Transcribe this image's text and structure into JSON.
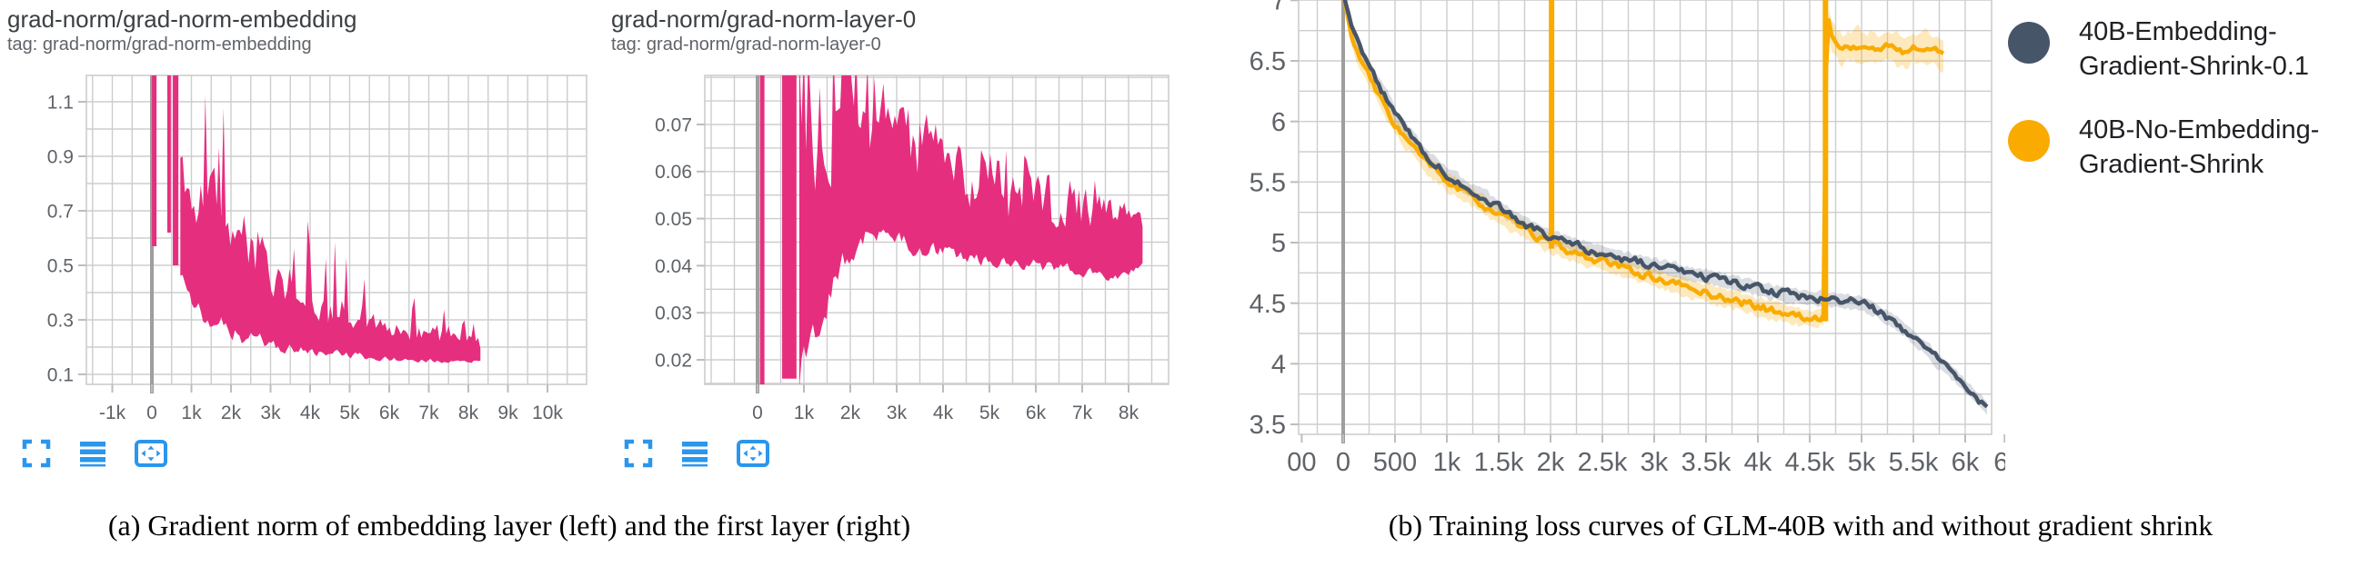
{
  "chart_data": [
    {
      "id": "embedding",
      "type": "area",
      "title": "grad-norm/grad-norm-embedding",
      "tag": "tag: grad-norm/grad-norm-embedding",
      "color": "#e62e7f",
      "xlim": [
        -1900,
        11000
      ],
      "ylim": [
        0.06,
        1.2
      ],
      "grid": true,
      "x_ticks": [
        {
          "v": -1000,
          "l": "-1k"
        },
        {
          "v": 0,
          "l": "0"
        },
        {
          "v": 1000,
          "l": "1k"
        },
        {
          "v": 2000,
          "l": "2k"
        },
        {
          "v": 3000,
          "l": "3k"
        },
        {
          "v": 4000,
          "l": "4k"
        },
        {
          "v": 5000,
          "l": "5k"
        },
        {
          "v": 6000,
          "l": "6k"
        },
        {
          "v": 7000,
          "l": "7k"
        },
        {
          "v": 8000,
          "l": "8k"
        },
        {
          "v": 9000,
          "l": "9k"
        },
        {
          "v": 10000,
          "l": "10k"
        }
      ],
      "y_ticks": [
        {
          "v": 0.1,
          "l": "0.1"
        },
        {
          "v": 0.3,
          "l": "0.3"
        },
        {
          "v": 0.5,
          "l": "0.5"
        },
        {
          "v": 0.7,
          "l": "0.7"
        },
        {
          "v": 0.9,
          "l": "0.9"
        },
        {
          "v": 1.1,
          "l": "1.1"
        }
      ],
      "init_spike": {
        "x": 60,
        "from": 0.57,
        "to": 1.3
      },
      "clip_bars": [
        {
          "x0": 390,
          "x1": 480,
          "v0": 0.62,
          "v1": 1.3
        },
        {
          "x0": 530,
          "x1": 670,
          "v0": 0.5,
          "v1": 1.3
        }
      ],
      "band": {
        "x": [
          720,
          900,
          1100,
          1400,
          1700,
          2000,
          2300,
          2600,
          2900,
          3200,
          3500,
          3800,
          4200,
          4600,
          5000,
          5400,
          5800,
          6200,
          6700,
          7200,
          7700,
          8100,
          8350
        ],
        "lo": [
          0.46,
          0.4,
          0.35,
          0.31,
          0.28,
          0.26,
          0.24,
          0.225,
          0.215,
          0.205,
          0.195,
          0.19,
          0.18,
          0.175,
          0.17,
          0.165,
          0.16,
          0.155,
          0.152,
          0.15,
          0.148,
          0.147,
          0.155
        ],
        "hi": [
          1.0,
          0.95,
          0.9,
          0.86,
          0.8,
          0.74,
          0.68,
          0.62,
          0.56,
          0.5,
          0.46,
          0.43,
          0.41,
          0.38,
          0.35,
          0.33,
          0.3,
          0.28,
          0.27,
          0.26,
          0.25,
          0.24,
          0.22
        ],
        "spike": [
          1.28,
          1.28,
          1.28,
          1.28,
          1.28,
          1.25,
          1.18,
          1.1,
          1.02,
          0.93,
          0.85,
          0.78,
          0.7,
          0.64,
          0.57,
          0.52,
          0.47,
          0.43,
          0.4,
          0.37,
          0.34,
          0.3,
          0.26
        ]
      }
    },
    {
      "id": "layer0",
      "type": "area",
      "title": "grad-norm/grad-norm-layer-0",
      "tag": "tag: grad-norm/grad-norm-layer-0",
      "color": "#e62e7f",
      "xlim": [
        -1140,
        8860
      ],
      "ylim": [
        0.015,
        0.08
      ],
      "grid": true,
      "x_ticks": [
        {
          "v": 0,
          "l": "0"
        },
        {
          "v": 1000,
          "l": "1k"
        },
        {
          "v": 2000,
          "l": "2k"
        },
        {
          "v": 3000,
          "l": "3k"
        },
        {
          "v": 4000,
          "l": "4k"
        },
        {
          "v": 5000,
          "l": "5k"
        },
        {
          "v": 6000,
          "l": "6k"
        },
        {
          "v": 7000,
          "l": "7k"
        },
        {
          "v": 8000,
          "l": "8k"
        }
      ],
      "y_ticks": [
        {
          "v": 0.02,
          "l": "0.02"
        },
        {
          "v": 0.03,
          "l": "0.03"
        },
        {
          "v": 0.04,
          "l": "0.04"
        },
        {
          "v": 0.05,
          "l": "0.05"
        },
        {
          "v": 0.06,
          "l": "0.06"
        },
        {
          "v": 0.07,
          "l": "0.07"
        }
      ],
      "init_spike": {
        "x": 100,
        "from": 0.013,
        "to": 0.086
      },
      "clip_bars": [
        {
          "x0": 530,
          "x1": 840,
          "v0": 0.016,
          "v1": 0.086
        }
      ],
      "band": {
        "x": [
          900,
          1000,
          1200,
          1400,
          1600,
          1800,
          2000,
          2200,
          2500,
          2800,
          3100,
          3500,
          4000,
          4500,
          5000,
          5500,
          6000,
          6500,
          7000,
          7500,
          8000,
          8350
        ],
        "lo": [
          0.016,
          0.02,
          0.026,
          0.031,
          0.036,
          0.04,
          0.043,
          0.045,
          0.046,
          0.046,
          0.045,
          0.044,
          0.043,
          0.042,
          0.041,
          0.04,
          0.04,
          0.039,
          0.039,
          0.038,
          0.038,
          0.041
        ],
        "hi": [
          0.086,
          0.086,
          0.086,
          0.086,
          0.086,
          0.086,
          0.086,
          0.083,
          0.08,
          0.077,
          0.074,
          0.07,
          0.067,
          0.064,
          0.062,
          0.06,
          0.059,
          0.057,
          0.056,
          0.054,
          0.051,
          0.05
        ],
        "spike": [
          0.086,
          0.086,
          0.086,
          0.086,
          0.086,
          0.086,
          0.086,
          0.086,
          0.085,
          0.082,
          0.079,
          0.075,
          0.072,
          0.069,
          0.067,
          0.065,
          0.063,
          0.061,
          0.059,
          0.058,
          0.055,
          0.053
        ]
      }
    },
    {
      "id": "loss",
      "type": "line",
      "title": "",
      "tag": "",
      "xlim": [
        -430,
        6250
      ],
      "ylim": [
        3.5,
        7.0
      ],
      "grid": true,
      "x_ticks": [
        {
          "v": -400,
          "l": "00"
        },
        {
          "v": 0,
          "l": "0"
        },
        {
          "v": 500,
          "l": "500"
        },
        {
          "v": 1000,
          "l": "1k"
        },
        {
          "v": 1500,
          "l": "1.5k"
        },
        {
          "v": 2000,
          "l": "2k"
        },
        {
          "v": 2500,
          "l": "2.5k"
        },
        {
          "v": 3000,
          "l": "3k"
        },
        {
          "v": 3500,
          "l": "3.5k"
        },
        {
          "v": 4000,
          "l": "4k"
        },
        {
          "v": 4500,
          "l": "4.5k"
        },
        {
          "v": 5000,
          "l": "5k"
        },
        {
          "v": 5500,
          "l": "5.5k"
        },
        {
          "v": 6000,
          "l": "6k"
        },
        {
          "v": 6380,
          "l": "6."
        }
      ],
      "y_ticks": [
        {
          "v": 3.5,
          "l": "3.5"
        },
        {
          "v": 4,
          "l": "4"
        },
        {
          "v": 4.5,
          "l": "4.5"
        },
        {
          "v": 5,
          "l": "5"
        },
        {
          "v": 5.5,
          "l": "5.5"
        },
        {
          "v": 6,
          "l": "6"
        },
        {
          "v": 6.5,
          "l": "6.5"
        },
        {
          "v": 7,
          "l": "7"
        }
      ],
      "series": [
        {
          "name": "40B-No-Embedding-Gradient-Shrink",
          "color": "#f9ab00",
          "band_color": "rgba(249,171,0,0.26)",
          "band_width": 0.09,
          "band_width_after": 0.15,
          "after_x": 4660,
          "spikes": [
            {
              "x": 2010,
              "y0": 4.95,
              "y1": 7.15
            },
            {
              "x": 4652,
              "y0": 4.35,
              "y1": 7.15
            }
          ],
          "points": [
            [
              0,
              7.05
            ],
            [
              60,
              6.78
            ],
            [
              120,
              6.6
            ],
            [
              200,
              6.45
            ],
            [
              300,
              6.28
            ],
            [
              400,
              6.12
            ],
            [
              500,
              5.98
            ],
            [
              600,
              5.86
            ],
            [
              700,
              5.76
            ],
            [
              800,
              5.66
            ],
            [
              900,
              5.58
            ],
            [
              1000,
              5.51
            ],
            [
              1150,
              5.42
            ],
            [
              1300,
              5.34
            ],
            [
              1450,
              5.26
            ],
            [
              1600,
              5.18
            ],
            [
              1750,
              5.11
            ],
            [
              1900,
              5.04
            ],
            [
              2010,
              4.99
            ],
            [
              2100,
              4.95
            ],
            [
              2250,
              4.91
            ],
            [
              2400,
              4.87
            ],
            [
              2550,
              4.83
            ],
            [
              2700,
              4.79
            ],
            [
              2850,
              4.75
            ],
            [
              3000,
              4.71
            ],
            [
              3200,
              4.66
            ],
            [
              3400,
              4.61
            ],
            [
              3600,
              4.56
            ],
            [
              3800,
              4.52
            ],
            [
              4000,
              4.47
            ],
            [
              4200,
              4.43
            ],
            [
              4400,
              4.39
            ],
            [
              4550,
              4.36
            ],
            [
              4640,
              4.4
            ],
            [
              4662,
              6.9
            ],
            [
              4720,
              6.7
            ],
            [
              4800,
              6.6
            ],
            [
              4950,
              6.62
            ],
            [
              5100,
              6.59
            ],
            [
              5250,
              6.62
            ],
            [
              5400,
              6.58
            ],
            [
              5550,
              6.61
            ],
            [
              5700,
              6.58
            ],
            [
              5790,
              6.56
            ]
          ]
        },
        {
          "name": "40B-Embedding-Gradient-Shrink-0.1",
          "color": "#475569",
          "band_color": "rgba(71,85,105,0.20)",
          "band_width": 0.07,
          "spikes": [],
          "points": [
            [
              0,
              7.05
            ],
            [
              60,
              6.85
            ],
            [
              120,
              6.68
            ],
            [
              200,
              6.52
            ],
            [
              300,
              6.37
            ],
            [
              400,
              6.22
            ],
            [
              500,
              6.06
            ],
            [
              600,
              5.93
            ],
            [
              700,
              5.82
            ],
            [
              800,
              5.72
            ],
            [
              900,
              5.64
            ],
            [
              1000,
              5.57
            ],
            [
              1150,
              5.48
            ],
            [
              1300,
              5.4
            ],
            [
              1450,
              5.32
            ],
            [
              1600,
              5.24
            ],
            [
              1750,
              5.16
            ],
            [
              1900,
              5.09
            ],
            [
              2050,
              5.03
            ],
            [
              2200,
              4.99
            ],
            [
              2350,
              4.95
            ],
            [
              2500,
              4.91
            ],
            [
              2650,
              4.88
            ],
            [
              2800,
              4.85
            ],
            [
              2950,
              4.82
            ],
            [
              3100,
              4.79
            ],
            [
              3250,
              4.76
            ],
            [
              3400,
              4.73
            ],
            [
              3550,
              4.71
            ],
            [
              3700,
              4.68
            ],
            [
              3850,
              4.65
            ],
            [
              4000,
              4.62
            ],
            [
              4150,
              4.59
            ],
            [
              4300,
              4.57
            ],
            [
              4450,
              4.55
            ],
            [
              4600,
              4.54
            ],
            [
              4750,
              4.53
            ],
            [
              4900,
              4.51
            ],
            [
              5000,
              4.5
            ],
            [
              5100,
              4.46
            ],
            [
              5200,
              4.41
            ],
            [
              5350,
              4.33
            ],
            [
              5500,
              4.22
            ],
            [
              5650,
              4.1
            ],
            [
              5800,
              3.98
            ],
            [
              5950,
              3.86
            ],
            [
              6100,
              3.73
            ],
            [
              6220,
              3.63
            ]
          ]
        }
      ]
    }
  ],
  "legend": {
    "items": [
      {
        "color": "#475569",
        "lines": [
          "40B-Embedding-",
          "Gradient-Shrink-0.1"
        ]
      },
      {
        "color": "#f9ab00",
        "lines": [
          "40B-No-Embedding-",
          "Gradient-Shrink"
        ]
      }
    ]
  },
  "toolbar": {
    "color": "#2b96ec",
    "icons": [
      "fullscreen-icon",
      "runs-icon",
      "fit-domain-icon"
    ]
  },
  "captions": {
    "a": "(a) Gradient norm of embedding layer (left) and the first layer (right)",
    "b": "(b) Training loss curves of GLM-40B with and without gradient shrink"
  },
  "style": {
    "grid_color": "#cdcdcd",
    "zero_line_color": "#9e9e9e",
    "tick_label_color": "#5f6368"
  }
}
